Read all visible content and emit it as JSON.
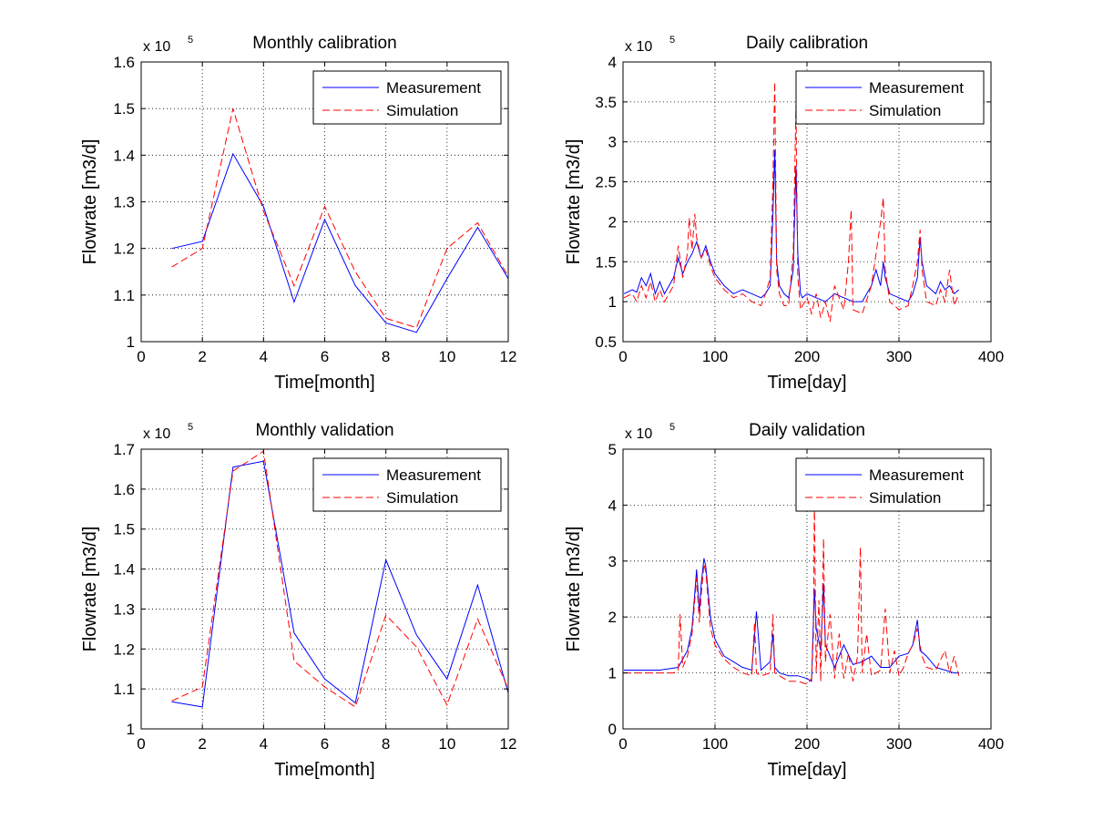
{
  "figure": {
    "background": "#ffffff"
  },
  "chart_data": [
    {
      "type": "line",
      "title": "Monthly calibration",
      "xlabel": "Time[month]",
      "ylabel": "Flowrate [m3/d]",
      "y_multiplier": "x 10",
      "y_multiplier_exp": "5",
      "xlim": [
        0,
        12
      ],
      "ylim": [
        1,
        1.6
      ],
      "xticks": [
        "0",
        "2",
        "4",
        "6",
        "8",
        "10",
        "12"
      ],
      "yticks": [
        "1",
        "1.1",
        "1.2",
        "1.3",
        "1.4",
        "1.5",
        "1.6"
      ],
      "grid": true,
      "legend_position": "top-right",
      "series": [
        {
          "name": "Measurement",
          "color": "#0000ff",
          "dash": "solid",
          "x": [
            1,
            2,
            3,
            4,
            5,
            6,
            7,
            8,
            9,
            10,
            11,
            12
          ],
          "y": [
            1.2,
            1.215,
            1.403,
            1.29,
            1.085,
            1.262,
            1.12,
            1.04,
            1.02,
            1.135,
            1.245,
            1.135
          ]
        },
        {
          "name": "Simulation",
          "color": "#ff0000",
          "dash": "dashed",
          "x": [
            1,
            2,
            3,
            4,
            5,
            6,
            7,
            8,
            9,
            10,
            11,
            12
          ],
          "y": [
            1.16,
            1.2,
            1.5,
            1.28,
            1.12,
            1.29,
            1.15,
            1.05,
            1.03,
            1.2,
            1.255,
            1.14
          ]
        }
      ]
    },
    {
      "type": "line",
      "title": "Daily calibration",
      "xlabel": "Time[day]",
      "ylabel": "Flowrate [m3/d]",
      "y_multiplier": "x 10",
      "y_multiplier_exp": "5",
      "xlim": [
        0,
        400
      ],
      "ylim": [
        0.5,
        4
      ],
      "xticks": [
        "0",
        "100",
        "200",
        "300",
        "400"
      ],
      "yticks": [
        "0.5",
        "1",
        "1.5",
        "2",
        "2.5",
        "3",
        "3.5",
        "4"
      ],
      "grid": true,
      "legend_position": "top-right",
      "series": [
        {
          "name": "Measurement",
          "color": "#0000ff",
          "dash": "solid",
          "x": [
            1,
            10,
            15,
            20,
            25,
            30,
            35,
            40,
            45,
            50,
            55,
            60,
            65,
            70,
            75,
            80,
            85,
            90,
            95,
            100,
            110,
            120,
            130,
            140,
            150,
            155,
            160,
            163,
            165,
            167,
            170,
            175,
            180,
            185,
            188,
            190,
            193,
            195,
            200,
            210,
            220,
            230,
            240,
            250,
            260,
            270,
            275,
            280,
            283,
            285,
            290,
            300,
            310,
            315,
            320,
            323,
            325,
            330,
            340,
            345,
            350,
            355,
            360,
            365
          ],
          "y": [
            1.1,
            1.15,
            1.12,
            1.3,
            1.2,
            1.35,
            1.1,
            1.25,
            1.1,
            1.2,
            1.3,
            1.55,
            1.35,
            1.5,
            1.6,
            1.75,
            1.55,
            1.7,
            1.5,
            1.35,
            1.2,
            1.1,
            1.15,
            1.1,
            1.05,
            1.1,
            1.2,
            2.1,
            2.9,
            1.5,
            1.2,
            1.1,
            1.05,
            1.4,
            2.7,
            1.6,
            1.1,
            1.05,
            1.1,
            1.05,
            1.0,
            1.1,
            1.05,
            1.0,
            1.0,
            1.2,
            1.4,
            1.2,
            1.5,
            1.3,
            1.1,
            1.05,
            1.0,
            1.1,
            1.3,
            1.8,
            1.5,
            1.2,
            1.1,
            1.25,
            1.15,
            1.2,
            1.1,
            1.15
          ]
        },
        {
          "name": "Simulation",
          "color": "#ff0000",
          "dash": "dashed",
          "x": [
            1,
            10,
            15,
            20,
            25,
            30,
            35,
            40,
            45,
            50,
            55,
            60,
            65,
            70,
            72,
            75,
            78,
            80,
            85,
            90,
            95,
            100,
            110,
            120,
            130,
            140,
            150,
            155,
            160,
            163,
            165,
            167,
            170,
            175,
            180,
            185,
            188,
            190,
            193,
            195,
            200,
            205,
            210,
            215,
            220,
            225,
            230,
            240,
            245,
            248,
            250,
            260,
            270,
            275,
            280,
            283,
            285,
            290,
            300,
            310,
            315,
            320,
            323,
            325,
            330,
            340,
            345,
            350,
            355,
            360,
            365
          ],
          "y": [
            1.05,
            1.1,
            1.0,
            1.2,
            1.05,
            1.25,
            1.0,
            1.15,
            1.0,
            1.1,
            1.2,
            1.7,
            1.3,
            1.6,
            2.05,
            1.65,
            2.1,
            1.8,
            1.55,
            1.65,
            1.45,
            1.3,
            1.15,
            1.05,
            1.1,
            1.0,
            0.95,
            1.1,
            1.3,
            2.5,
            3.75,
            1.4,
            1.1,
            0.95,
            0.95,
            1.6,
            3.45,
            1.3,
            0.9,
            0.95,
            1.05,
            0.85,
            1.1,
            0.8,
            1.0,
            0.75,
            1.2,
            0.9,
            1.5,
            2.15,
            0.9,
            0.85,
            1.2,
            1.6,
            2.0,
            2.3,
            1.4,
            1.0,
            0.9,
            0.95,
            1.2,
            1.5,
            1.9,
            1.4,
            1.0,
            0.95,
            1.15,
            1.0,
            1.4,
            0.95,
            1.1
          ]
        }
      ]
    },
    {
      "type": "line",
      "title": "Monthly validation",
      "xlabel": "Time[month]",
      "ylabel": "Flowrate [m3/d]",
      "y_multiplier": "x 10",
      "y_multiplier_exp": "5",
      "xlim": [
        0,
        12
      ],
      "ylim": [
        1,
        1.7
      ],
      "xticks": [
        "0",
        "2",
        "4",
        "6",
        "8",
        "10",
        "12"
      ],
      "yticks": [
        "1",
        "1.1",
        "1.2",
        "1.3",
        "1.4",
        "1.5",
        "1.6",
        "1.7"
      ],
      "grid": true,
      "legend_position": "top-right",
      "series": [
        {
          "name": "Measurement",
          "color": "#0000ff",
          "dash": "solid",
          "x": [
            1,
            2,
            3,
            4,
            5,
            6,
            7,
            8,
            9,
            10,
            11,
            12
          ],
          "y": [
            1.068,
            1.055,
            1.655,
            1.67,
            1.24,
            1.125,
            1.065,
            1.423,
            1.235,
            1.125,
            1.36,
            1.09
          ]
        },
        {
          "name": "Simulation",
          "color": "#ff0000",
          "dash": "dashed",
          "x": [
            1,
            2,
            3,
            4,
            5,
            6,
            7,
            8,
            9,
            10,
            11,
            12
          ],
          "y": [
            1.07,
            1.105,
            1.645,
            1.695,
            1.17,
            1.105,
            1.055,
            1.285,
            1.205,
            1.06,
            1.275,
            1.1
          ]
        }
      ]
    },
    {
      "type": "line",
      "title": "Daily validation",
      "xlabel": "Time[day]",
      "ylabel": "Flowrate [m3/d]",
      "y_multiplier": "x 10",
      "y_multiplier_exp": "5",
      "xlim": [
        0,
        400
      ],
      "ylim": [
        0,
        5
      ],
      "xticks": [
        "0",
        "100",
        "200",
        "300",
        "400"
      ],
      "yticks": [
        "0",
        "1",
        "2",
        "3",
        "4",
        "5"
      ],
      "grid": true,
      "legend_position": "top-right",
      "series": [
        {
          "name": "Measurement",
          "color": "#0000ff",
          "dash": "solid",
          "x": [
            1,
            20,
            40,
            60,
            70,
            75,
            80,
            83,
            85,
            88,
            90,
            95,
            100,
            110,
            120,
            130,
            140,
            145,
            150,
            160,
            163,
            165,
            170,
            180,
            190,
            200,
            205,
            208,
            210,
            215,
            218,
            220,
            225,
            230,
            240,
            250,
            260,
            270,
            280,
            290,
            300,
            310,
            315,
            320,
            323,
            330,
            340,
            350,
            360,
            365
          ],
          "y": [
            1.05,
            1.05,
            1.05,
            1.1,
            1.4,
            1.8,
            2.85,
            2.1,
            2.6,
            3.05,
            2.9,
            2.0,
            1.6,
            1.3,
            1.2,
            1.1,
            1.05,
            2.1,
            1.05,
            1.2,
            1.7,
            1.1,
            1.0,
            0.95,
            0.95,
            0.9,
            0.85,
            2.5,
            1.8,
            1.4,
            2.6,
            1.5,
            1.3,
            1.1,
            1.5,
            1.15,
            1.2,
            1.3,
            1.1,
            1.1,
            1.3,
            1.35,
            1.5,
            1.95,
            1.4,
            1.3,
            1.1,
            1.05,
            1.0,
            1.0
          ]
        },
        {
          "name": "Simulation",
          "color": "#ff0000",
          "dash": "dashed",
          "x": [
            1,
            20,
            40,
            55,
            60,
            62,
            65,
            70,
            75,
            80,
            83,
            85,
            88,
            90,
            95,
            100,
            110,
            120,
            130,
            140,
            143,
            145,
            150,
            160,
            163,
            165,
            170,
            180,
            190,
            200,
            205,
            207,
            208,
            210,
            213,
            215,
            218,
            220,
            225,
            230,
            235,
            240,
            245,
            250,
            255,
            258,
            260,
            265,
            270,
            280,
            285,
            290,
            295,
            300,
            305,
            310,
            315,
            320,
            325,
            330,
            340,
            350,
            355,
            360,
            365
          ],
          "y": [
            1.0,
            1.0,
            1.0,
            1.0,
            1.05,
            2.05,
            1.1,
            1.3,
            1.7,
            2.7,
            1.9,
            2.4,
            2.95,
            2.8,
            1.8,
            1.5,
            1.25,
            1.1,
            1.0,
            0.95,
            1.9,
            1.0,
            0.95,
            1.0,
            2.05,
            1.0,
            0.95,
            0.85,
            0.85,
            0.8,
            0.9,
            1.7,
            4.1,
            1.0,
            2.3,
            0.85,
            3.4,
            1.2,
            2.05,
            0.9,
            1.7,
            0.9,
            1.35,
            0.85,
            1.3,
            3.25,
            1.0,
            1.7,
            0.95,
            1.05,
            2.15,
            1.0,
            1.4,
            0.95,
            1.1,
            1.35,
            1.5,
            1.8,
            1.3,
            1.1,
            1.05,
            1.4,
            1.0,
            1.3,
            0.95
          ]
        }
      ]
    }
  ]
}
